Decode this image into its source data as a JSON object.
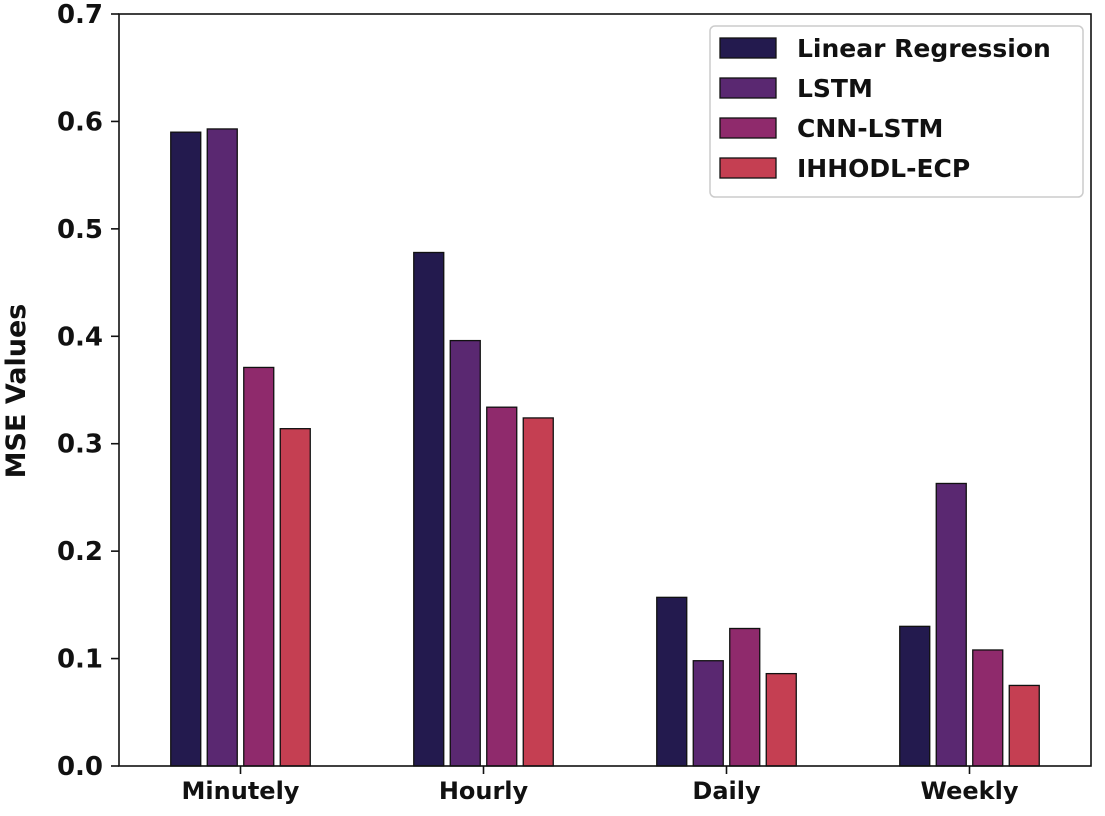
{
  "chart_data": {
    "type": "bar",
    "title": "",
    "xlabel": "",
    "ylabel": "MSE Values",
    "categories": [
      "Minutely",
      "Hourly",
      "Daily",
      "Weekly"
    ],
    "ylim": [
      0,
      0.7
    ],
    "yticks": [
      "0.0",
      "0.1",
      "0.2",
      "0.3",
      "0.4",
      "0.5",
      "0.6",
      "0.7"
    ],
    "grid": false,
    "legend_position": "top-right",
    "series": [
      {
        "name": "Linear Regression",
        "color": "#231a4e",
        "values": [
          0.59,
          0.478,
          0.157,
          0.13
        ]
      },
      {
        "name": "LSTM",
        "color": "#5a2871",
        "values": [
          0.593,
          0.396,
          0.098,
          0.263
        ]
      },
      {
        "name": "CNN-LSTM",
        "color": "#8f2a6c",
        "values": [
          0.371,
          0.334,
          0.128,
          0.108
        ]
      },
      {
        "name": "IHHODL-ECP",
        "color": "#c53f52",
        "values": [
          0.314,
          0.324,
          0.086,
          0.075
        ]
      }
    ]
  }
}
